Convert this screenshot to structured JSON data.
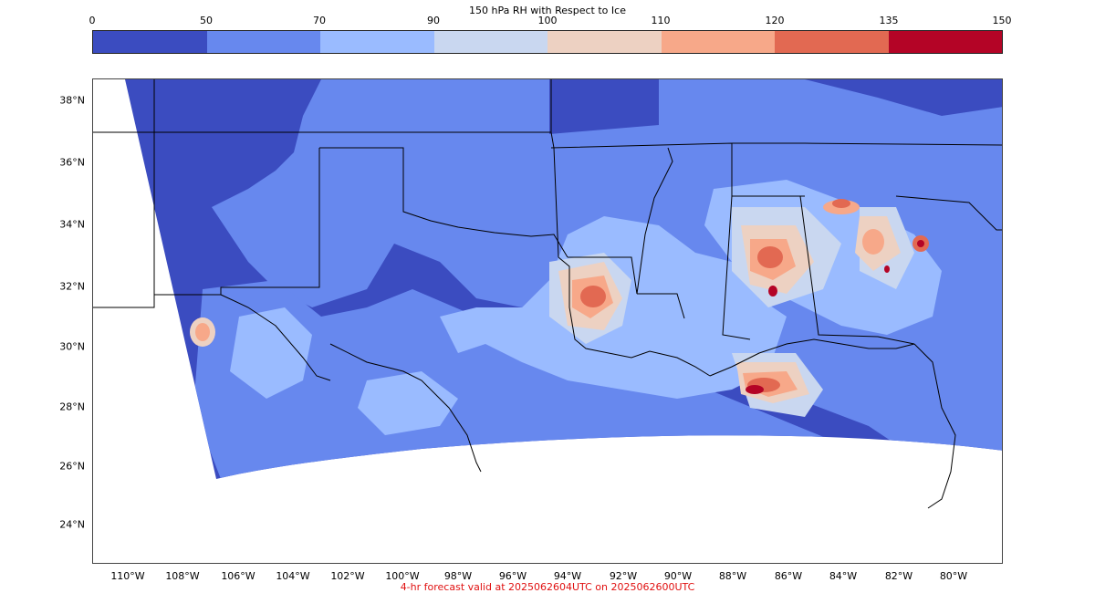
{
  "title": "150 hPa RH with Respect to Ice",
  "colorbar": {
    "ticks": [
      "0",
      "50",
      "70",
      "90",
      "100",
      "110",
      "120",
      "135",
      "150"
    ],
    "colors": [
      "#3b4cc0",
      "#6788ee",
      "#9abbff",
      "#c9d7f0",
      "#edd1c2",
      "#f7a889",
      "#e26952",
      "#b40426"
    ]
  },
  "axes": {
    "lat_labels": [
      "38°N",
      "36°N",
      "34°N",
      "32°N",
      "30°N",
      "28°N",
      "26°N",
      "24°N"
    ],
    "lon_labels": [
      "110°W",
      "108°W",
      "106°W",
      "104°W",
      "102°W",
      "100°W",
      "98°W",
      "96°W",
      "94°W",
      "92°W",
      "90°W",
      "88°W",
      "86°W",
      "84°W",
      "82°W",
      "80°W"
    ]
  },
  "footer": "4-hr forecast valid at 2025062604UTC on 2025062600UTC"
}
